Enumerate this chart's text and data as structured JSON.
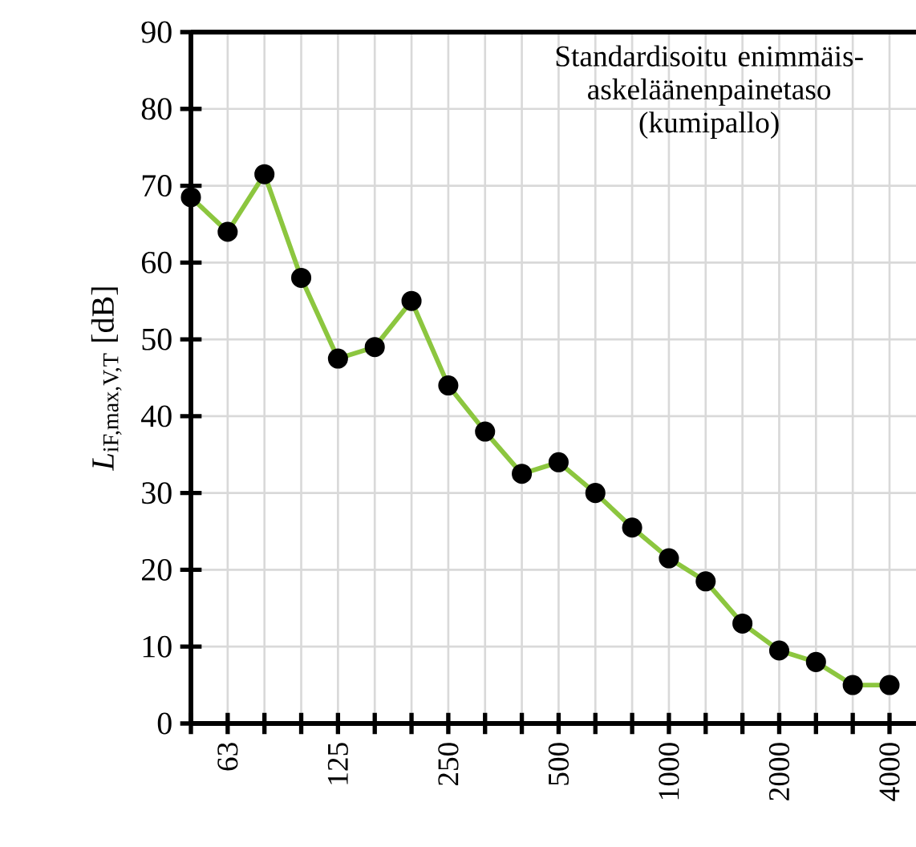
{
  "chart_data": {
    "type": "line",
    "title": "Standardisoitu enimmäis-askeläänenpainetaso (kumipallo)",
    "ylabel": "*L*$_{iF,max,V,T}$ [dB]",
    "categories": [
      null,
      "63",
      null,
      null,
      "125",
      null,
      null,
      "250",
      null,
      null,
      "500",
      null,
      null,
      "1000",
      null,
      null,
      "2000",
      null,
      null,
      "4000"
    ],
    "series": [
      {
        "color": "#8cc63f",
        "values": [
          68.5,
          64,
          71.5,
          58,
          47.5,
          49,
          55,
          44,
          38,
          32.5,
          34,
          30,
          25.5,
          21.5,
          18.5,
          13,
          9.5,
          8,
          5,
          5
        ]
      }
    ],
    "ylim": [
      0,
      90
    ],
    "yticks": [
      0,
      10,
      20,
      30,
      40,
      50,
      60,
      70,
      80,
      90
    ],
    "grid": true,
    "marker": "circle",
    "line_style": "solid"
  }
}
